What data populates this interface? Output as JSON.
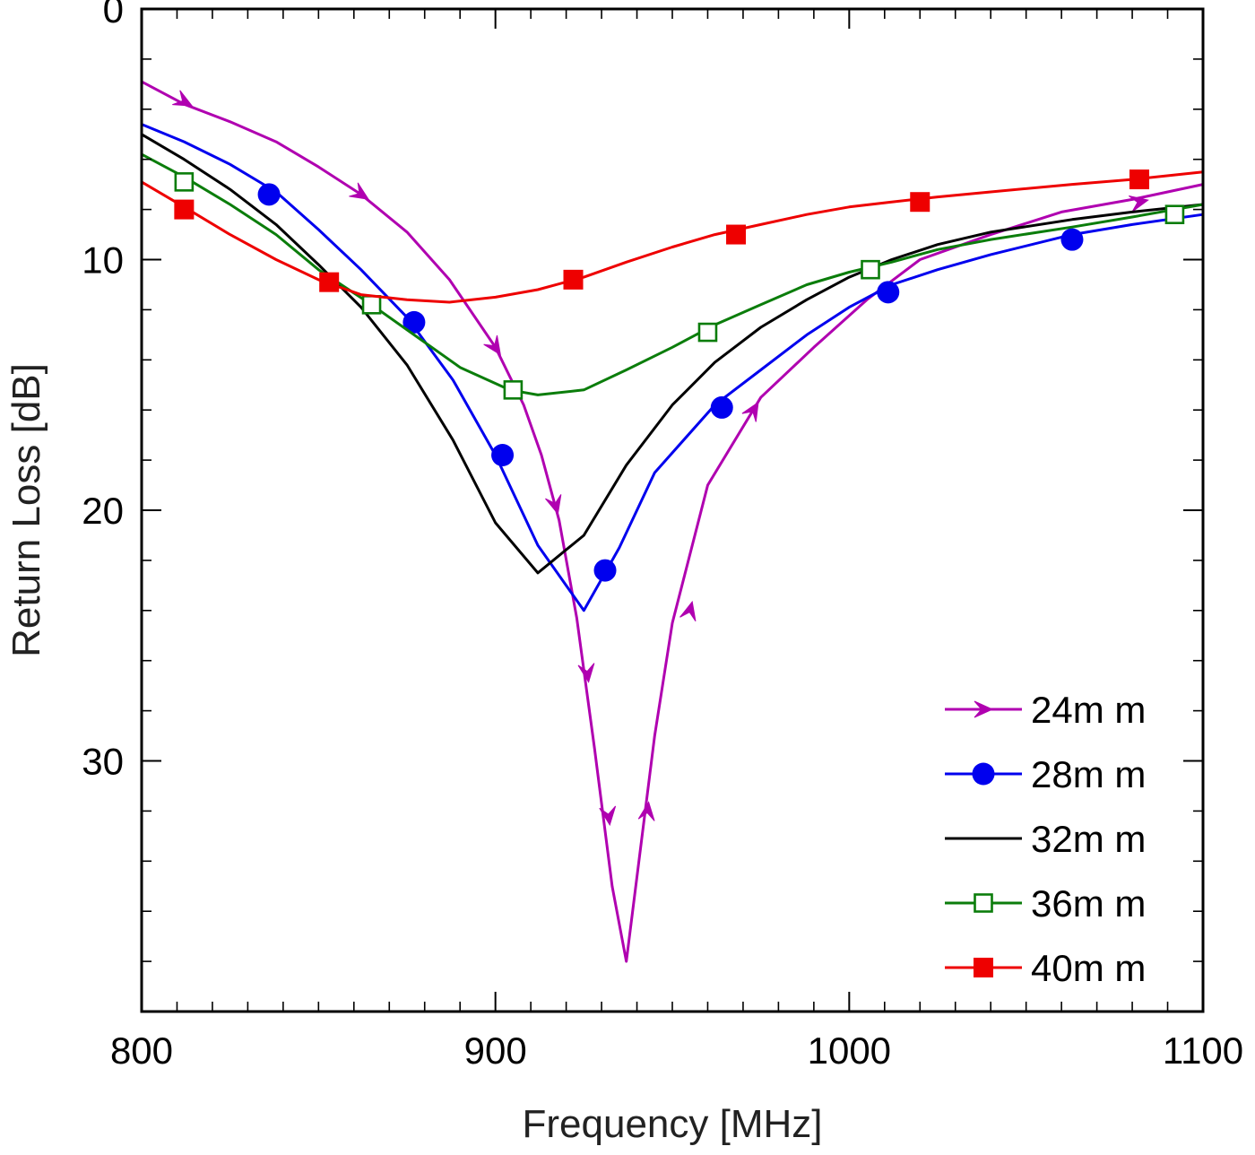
{
  "chart_data": {
    "type": "line",
    "title": "",
    "xlabel": "Frequency [MHz]",
    "ylabel": "Return Loss [dB]",
    "xlim": [
      800,
      1100
    ],
    "ylim": [
      0,
      40
    ],
    "y_inverted": true,
    "x_ticks": [
      800,
      900,
      1000,
      1100
    ],
    "x_tick_labels": [
      "800",
      "900",
      "1000",
      "1100"
    ],
    "y_ticks": [
      0,
      10,
      20,
      30
    ],
    "y_tick_labels": [
      "0",
      "10",
      "20",
      "30"
    ],
    "grid": false,
    "legend_position": "bottom-right",
    "series": [
      {
        "name": "24m m",
        "color": "#b000b0",
        "marker": "arrow",
        "x": [
          800,
          812,
          825,
          838,
          850,
          862,
          875,
          887,
          900,
          908,
          913,
          918,
          923,
          928,
          933,
          937,
          941,
          945,
          950,
          960,
          975,
          990,
          1005,
          1020,
          1040,
          1060,
          1080,
          1100
        ],
        "y": [
          2.9,
          3.8,
          4.5,
          5.3,
          6.3,
          7.4,
          8.9,
          10.8,
          13.5,
          15.8,
          17.8,
          20.4,
          24.3,
          29.5,
          35.0,
          38.0,
          33.5,
          29.0,
          24.5,
          19.0,
          15.5,
          13.5,
          11.6,
          10.0,
          9.0,
          8.1,
          7.6,
          7.0
        ],
        "markers_x": [
          812,
          862,
          900,
          917,
          926,
          932,
          943,
          955,
          973,
          1082
        ],
        "markers_y": [
          3.7,
          7.4,
          13.5,
          19.8,
          26.5,
          32.2,
          32.0,
          24.0,
          16.0,
          7.7
        ]
      },
      {
        "name": "28m m",
        "color": "#0000ee",
        "marker": "filled-circle",
        "x": [
          800,
          812,
          825,
          838,
          850,
          862,
          875,
          888,
          900,
          912,
          925,
          935,
          945,
          962,
          975,
          988,
          1000,
          1012,
          1025,
          1040,
          1063,
          1080,
          1100
        ],
        "y": [
          4.6,
          5.3,
          6.2,
          7.3,
          8.8,
          10.4,
          12.3,
          14.8,
          17.8,
          21.4,
          24.0,
          21.5,
          18.5,
          15.8,
          14.4,
          13.0,
          11.9,
          11.0,
          10.4,
          9.8,
          9.0,
          8.6,
          8.2
        ],
        "markers_x": [
          836,
          877,
          902,
          931,
          964,
          1011,
          1063
        ],
        "markers_y": [
          7.4,
          12.5,
          17.8,
          22.4,
          15.9,
          11.3,
          9.2
        ]
      },
      {
        "name": "32m m",
        "color": "#000000",
        "marker": "none",
        "x": [
          800,
          812,
          825,
          838,
          850,
          862,
          875,
          888,
          900,
          912,
          925,
          937,
          950,
          962,
          975,
          988,
          1000,
          1012,
          1025,
          1040,
          1063,
          1080,
          1100
        ],
        "y": [
          5.0,
          6.0,
          7.2,
          8.6,
          10.2,
          11.9,
          14.2,
          17.2,
          20.5,
          22.5,
          21.0,
          18.2,
          15.8,
          14.1,
          12.7,
          11.6,
          10.7,
          10.0,
          9.4,
          8.9,
          8.4,
          8.1,
          7.8
        ],
        "markers_x": [],
        "markers_y": []
      },
      {
        "name": "36m m",
        "color": "#0b7d0b",
        "marker": "open-square",
        "x": [
          800,
          812,
          825,
          838,
          850,
          865,
          878,
          890,
          904,
          912,
          925,
          937,
          950,
          962,
          975,
          988,
          1000,
          1012,
          1025,
          1040,
          1063,
          1080,
          1100
        ],
        "y": [
          5.8,
          6.7,
          7.8,
          9.0,
          10.4,
          11.8,
          13.1,
          14.3,
          15.2,
          15.4,
          15.2,
          14.4,
          13.5,
          12.6,
          11.8,
          11.0,
          10.5,
          10.1,
          9.6,
          9.2,
          8.7,
          8.3,
          7.8
        ],
        "markers_x": [
          812,
          865,
          905,
          960,
          1006,
          1092
        ],
        "markers_y": [
          6.9,
          11.8,
          15.2,
          12.9,
          10.4,
          8.2
        ]
      },
      {
        "name": "40m m",
        "color": "#ee0000",
        "marker": "filled-square",
        "x": [
          800,
          812,
          825,
          838,
          850,
          862,
          875,
          887,
          900,
          912,
          925,
          937,
          950,
          962,
          975,
          988,
          1000,
          1012,
          1025,
          1040,
          1063,
          1080,
          1100
        ],
        "y": [
          6.9,
          7.9,
          9.0,
          10.0,
          10.8,
          11.4,
          11.6,
          11.7,
          11.5,
          11.2,
          10.7,
          10.1,
          9.5,
          9.0,
          8.6,
          8.2,
          7.9,
          7.7,
          7.5,
          7.3,
          7.0,
          6.8,
          6.5
        ],
        "markers_x": [
          812,
          853,
          922,
          968,
          1020,
          1082
        ],
        "markers_y": [
          8.0,
          10.9,
          10.8,
          9.0,
          7.7,
          6.8
        ]
      }
    ]
  }
}
